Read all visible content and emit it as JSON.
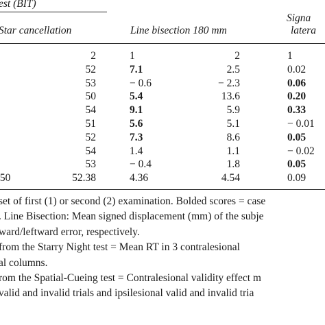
{
  "header": {
    "group_label": "est (BIT)",
    "col_star": "Star cancellation",
    "col_line": "Line bisection 180 mm",
    "col_signal": "Signa",
    "col_signal_sub": "latera"
  },
  "rows": [
    {
      "left": "",
      "star": "2",
      "line1": "1",
      "line2": "2",
      "sig": "1",
      "b1": false,
      "bs": false
    },
    {
      "left": "",
      "star": "52",
      "line1": "7.1",
      "line2": "2.5",
      "sig": "0.02",
      "b1": true,
      "bs": false
    },
    {
      "left": "",
      "star": "53",
      "line1": "− 0.6",
      "line2": "− 2.3",
      "sig": "0.06",
      "b1": false,
      "bs": true
    },
    {
      "left": "",
      "star": "50",
      "line1": "5.4",
      "line2": "13.6",
      "sig": "0.20",
      "b1": true,
      "bs": true
    },
    {
      "left": "",
      "star": "54",
      "line1": "9.1",
      "line2": "5.9",
      "sig": "0.33",
      "b1": true,
      "bs": true
    },
    {
      "left": "",
      "star": "51",
      "line1": "5.6",
      "line2": "5.1",
      "sig": "− 0.01",
      "b1": true,
      "bs": false
    },
    {
      "left": "",
      "star": "52",
      "line1": "7.3",
      "line2": "8.6",
      "sig": "0.05",
      "b1": true,
      "bs": true
    },
    {
      "left": "",
      "star": "54",
      "line1": "1.4",
      "line2": "1.1",
      "sig": "− 0.02",
      "b1": false,
      "bs": false
    },
    {
      "left": "",
      "star": "53",
      "line1": "− 0.4",
      "line2": "1.8",
      "sig": "0.05",
      "b1": false,
      "bs": true
    },
    {
      "left": ".50",
      "star": "52.38",
      "line1": "4.36",
      "line2": "4.54",
      "sig": "0.09",
      "b1": false,
      "bs": false
    }
  ],
  "footnotes": [
    "set of first (1) or second (2) examination. Bolded scores = case",
    ". Line Bisection: Mean signed displacement (mm) of the subje",
    "ward/leftward error, respectively.",
    "from the Starry Night test = Mean RT in 3 contralesional",
    "al columns.",
    "rom the Spatial-Cueing test = Contralesional validity effect m",
    " valid and invalid trials and ipsilesional valid and invalid tria"
  ]
}
